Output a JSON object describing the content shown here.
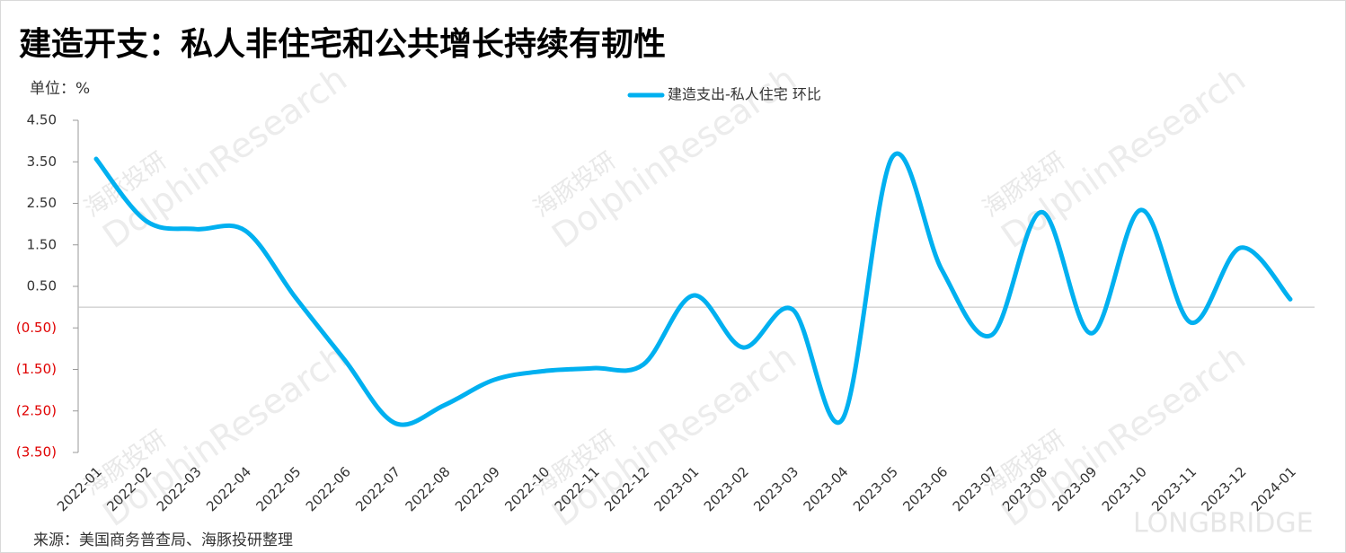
{
  "chart_data": {
    "type": "line",
    "title": "建造开支：私人非住宅和公共增长持续有韧性",
    "unit_label": "单位：%",
    "source": "来源：美国商务普查局、海豚投研整理",
    "watermarks": [
      "海豚投研",
      "DolphinResearch",
      "LONGBRIDGE"
    ],
    "categories": [
      "2022-01",
      "2022-02",
      "2022-03",
      "2022-04",
      "2022-05",
      "2022-06",
      "2022-07",
      "2022-08",
      "2022-09",
      "2022-10",
      "2022-11",
      "2022-12",
      "2023-01",
      "2023-02",
      "2023-03",
      "2023-04",
      "2023-05",
      "2023-06",
      "2023-07",
      "2023-08",
      "2023-09",
      "2023-10",
      "2023-11",
      "2023-12",
      "2024-01"
    ],
    "series": [
      {
        "name": "建造支出-私人住宅 环比",
        "color": "#00b0f0",
        "values": [
          3.57,
          2.08,
          1.88,
          1.84,
          0.24,
          -1.28,
          -2.79,
          -2.36,
          -1.75,
          -1.54,
          -1.47,
          -1.38,
          0.28,
          -0.97,
          -0.06,
          -2.7,
          3.61,
          0.89,
          -0.67,
          2.29,
          -0.63,
          2.34,
          -0.37,
          1.43,
          0.19
        ]
      }
    ],
    "ylim": [
      -3.5,
      4.5
    ],
    "yticks": [
      {
        "value": 4.5,
        "label": "4.50"
      },
      {
        "value": 3.5,
        "label": "3.50"
      },
      {
        "value": 2.5,
        "label": "2.50"
      },
      {
        "value": 1.5,
        "label": "1.50"
      },
      {
        "value": 0.5,
        "label": "0.50"
      },
      {
        "value": -0.5,
        "label": "(0.50)"
      },
      {
        "value": -1.5,
        "label": "(1.50)"
      },
      {
        "value": -2.5,
        "label": "(2.50)"
      },
      {
        "value": -3.5,
        "label": "(3.50)"
      }
    ],
    "negative_label_color": "#e00000",
    "smooth": true,
    "legend": "top"
  }
}
